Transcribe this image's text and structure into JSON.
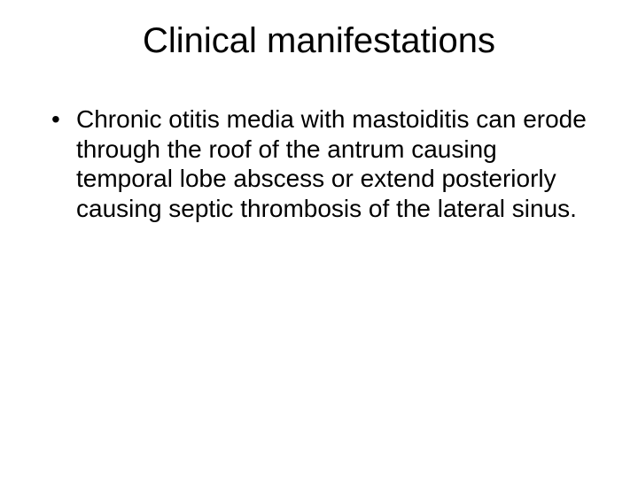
{
  "slide": {
    "title": "Clinical manifestations",
    "bullets": [
      "Chronic otitis media with mastoiditis can erode through the roof of the antrum causing temporal lobe abscess or extend posteriorly causing septic thrombosis of the lateral sinus."
    ],
    "title_fontsize": 40,
    "body_fontsize": 28,
    "text_color": "#000000",
    "background_color": "#ffffff",
    "font_family": "Arial"
  }
}
